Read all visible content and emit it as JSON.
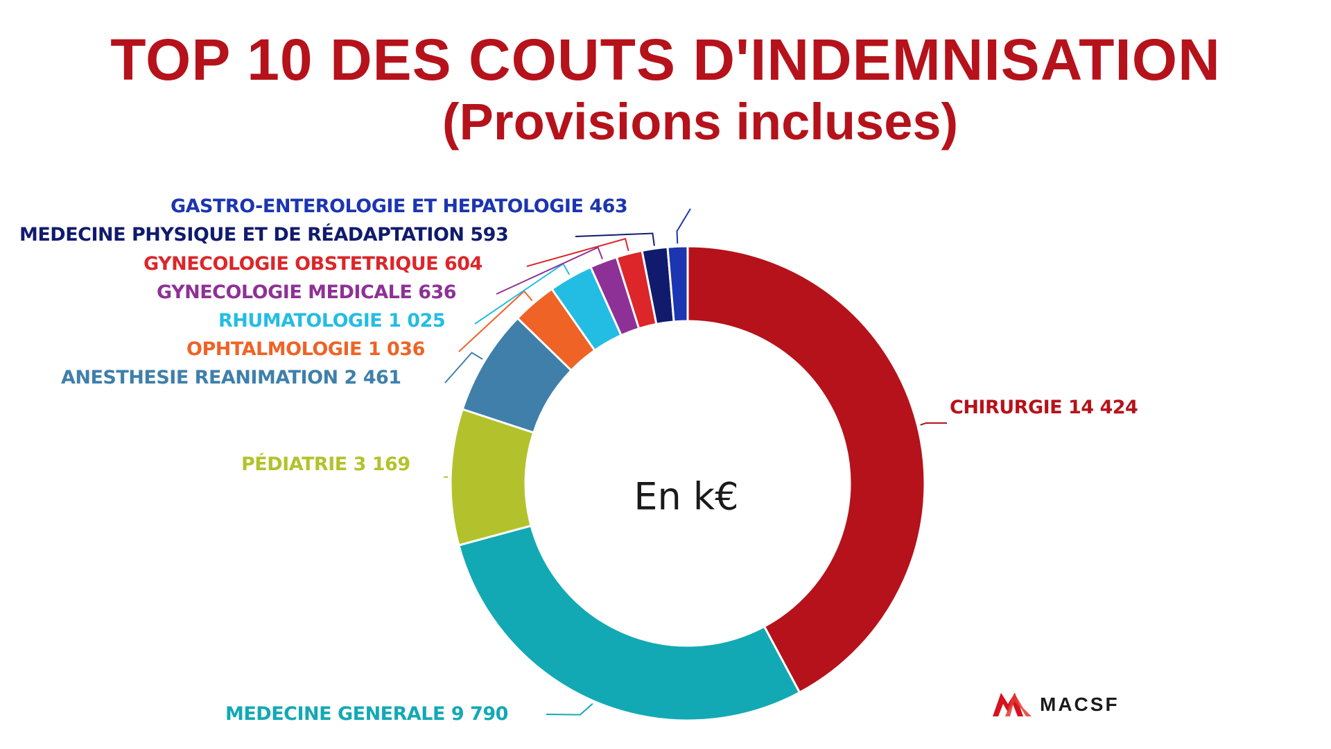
{
  "chart_data": {
    "type": "pie",
    "title": "TOP 10 DES COUTS D'INDEMNISATION",
    "subtitle": "(Provisions incluses)",
    "center_label": "En k€",
    "slices": [
      {
        "label": "CHIRURGIE 14 424",
        "name": "CHIRURGIE",
        "value": 14424,
        "color": "#b5121b"
      },
      {
        "label": "MEDECINE GENERALE 9 790",
        "name": "MEDECINE GENERALE",
        "value": 9790,
        "color": "#12a9b4"
      },
      {
        "label": "PÉDIATRIE 3 169",
        "name": "PÉDIATRIE",
        "value": 3169,
        "color": "#b3c22c"
      },
      {
        "label": "ANESTHESIE REANIMATION 2 461",
        "name": "ANESTHESIE REANIMATION",
        "value": 2461,
        "color": "#3f7faa"
      },
      {
        "label": "OPHTALMOLOGIE 1 036",
        "name": "OPHTALMOLOGIE",
        "value": 1036,
        "color": "#ef6327"
      },
      {
        "label": "RHUMATOLOGIE 1 025",
        "name": "RHUMATOLOGIE",
        "value": 1025,
        "color": "#23bde3"
      },
      {
        "label": "GYNECOLOGIE MEDICALE 636",
        "name": "GYNECOLOGIE MEDICALE",
        "value": 636,
        "color": "#8e3196"
      },
      {
        "label": "GYNECOLOGIE OBSTETRIQUE 604",
        "name": "GYNECOLOGIE OBSTETRIQUE",
        "value": 604,
        "color": "#dc2629"
      },
      {
        "label": "MEDECINE PHYSIQUE ET DE RÉADAPTATION 593",
        "name": "MEDECINE PHYSIQUE ET DE RÉADAPTATION",
        "value": 593,
        "color": "#101b6d"
      },
      {
        "label": "GASTRO-ENTEROLOGIE ET HEPATOLOGIE 463",
        "name": "GASTRO-ENTEROLOGIE ET HEPATOLOGIE",
        "value": 463,
        "color": "#1c35b0"
      }
    ],
    "donut": true,
    "start": "top, clockwise"
  },
  "logo": {
    "text": "MACSF",
    "color": "#d6121e",
    "icon": "macsf-logo-icon"
  }
}
